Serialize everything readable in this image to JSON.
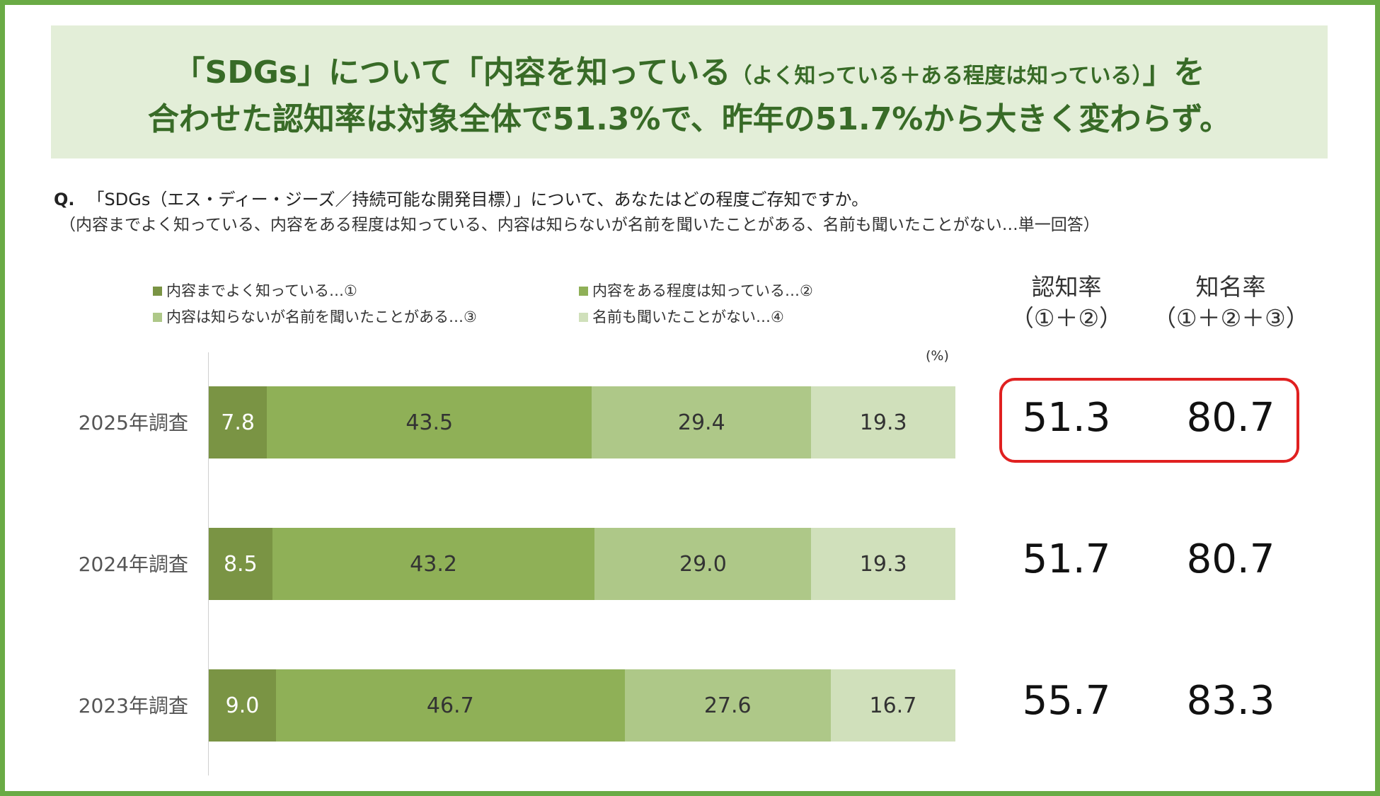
{
  "headline": {
    "line1_main": "「SDGs」について「内容を知っている",
    "line1_paren": "（よく知っている＋ある程度は知っている）",
    "line1_end": "」を",
    "line2": "合わせた認知率は対象全体で51.3%で、昨年の51.7%から大きく変わらず。"
  },
  "question": {
    "prefix": "Q.",
    "text": "「SDGs（エス・ディー・ジーズ／持続可能な開発目標）」について、あなたはどの程度ご存知ですか。",
    "options": "（内容までよく知っている、内容をある程度は知っている、内容は知らないが名前を聞いたことがある、名前も聞いたことがない…単一回答）"
  },
  "columns": {
    "awareness_title": "認知率",
    "awareness_formula": "（①＋②）",
    "recognition_title": "知名率",
    "recognition_formula": "（①＋②＋③）"
  },
  "highlight_row": "2025年調査",
  "chart_data": {
    "type": "bar",
    "orientation": "horizontal",
    "stacked": true,
    "unit": "(%)",
    "xlim": [
      0,
      100
    ],
    "categories": [
      "2025年調査",
      "2024年調査",
      "2023年調査"
    ],
    "series": [
      {
        "name": "内容までよく知っている…①",
        "color": "#7a9444",
        "label_color": "#ffffff",
        "values": [
          7.8,
          8.5,
          9.0
        ]
      },
      {
        "name": "内容をある程度は知っている…②",
        "color": "#8fb057",
        "label_color": "#333333",
        "values": [
          43.5,
          43.2,
          46.7
        ]
      },
      {
        "name": "内容は知らないが名前を聞いたことがある…③",
        "color": "#aec888",
        "label_color": "#333333",
        "values": [
          29.4,
          29.0,
          27.6
        ]
      },
      {
        "name": "名前も聞いたことがない…④",
        "color": "#d0e0bb",
        "label_color": "#333333",
        "values": [
          19.3,
          19.3,
          16.7
        ]
      }
    ],
    "awareness": [
      "51.3",
      "51.7",
      "55.7"
    ],
    "recognition": [
      "80.7",
      "80.7",
      "83.3"
    ],
    "grid": false,
    "legend_position": "top"
  }
}
